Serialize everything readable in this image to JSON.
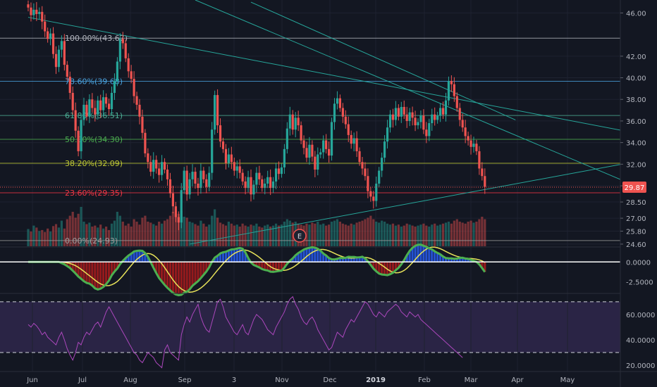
{
  "chart_data": [
    {
      "type": "candlestick",
      "panel": "price",
      "price_axis": {
        "ticks": [
          "46.00",
          "42.00",
          "40.00",
          "38.00",
          "36.00",
          "34.00",
          "32.00",
          "30.00",
          "28.50",
          "27.00",
          "25.80",
          "24.60"
        ],
        "ylim": [
          24.4,
          47.2
        ],
        "current_price": "29.87"
      },
      "time_axis": {
        "labels": [
          "Jun",
          "Jul",
          "Aug",
          "Sep",
          "3",
          "Nov",
          "Dec",
          "2019",
          "Feb",
          "Mar",
          "Apr",
          "May"
        ],
        "bold": [
          "2019"
        ]
      },
      "fibonacci_levels": [
        {
          "ratio": 1.0,
          "price": 43.67,
          "label": "100.00%(43.67)",
          "color": "#b2b5be"
        },
        {
          "ratio": 0.786,
          "price": 39.68,
          "label": "78.60%(39.68)",
          "color": "#4aa3df"
        },
        {
          "ratio": 0.618,
          "price": 36.51,
          "label": "61.80%(36.51)",
          "color": "#4caf95"
        },
        {
          "ratio": 0.5,
          "price": 34.3,
          "label": "50.00%(34.30)",
          "color": "#4caf50"
        },
        {
          "ratio": 0.382,
          "price": 32.09,
          "label": "38.20%(32.09)",
          "color": "#c0ca33"
        },
        {
          "ratio": 0.236,
          "price": 29.35,
          "label": "23.60%(29.35)",
          "color": "#f23645"
        },
        {
          "ratio": 0.0,
          "price": 24.93,
          "label": "0.00%(24.93)",
          "color": "#9e9e9e"
        }
      ],
      "earnings_marker": "E",
      "series": [
        {
          "name": "close",
          "values": [
            46.5,
            45.8,
            46.3,
            45.9,
            46.1,
            45.2,
            44.3,
            43.6,
            44.1,
            42.2,
            41.0,
            42.6,
            43.4,
            41.2,
            40.1,
            38.6,
            37.0,
            35.1,
            33.2,
            36.1,
            37.5,
            36.4,
            38.0,
            37.2,
            36.6,
            37.9,
            37.0,
            38.2,
            37.6,
            37.1,
            38.6,
            39.7,
            41.5,
            43.6,
            43.2,
            41.8,
            40.6,
            39.9,
            38.3,
            37.5,
            36.4,
            34.9,
            33.0,
            32.2,
            31.3,
            32.4,
            31.6,
            31.0,
            32.2,
            31.5,
            30.6,
            29.3,
            28.1,
            27.1,
            26.6,
            29.6,
            31.4,
            29.2,
            30.6,
            31.3,
            30.2,
            29.8,
            31.4,
            30.6,
            29.9,
            31.2,
            35.2,
            38.4,
            35.6,
            34.1,
            33.4,
            32.1,
            32.9,
            32.2,
            31.4,
            31.8,
            31.2,
            30.4,
            29.8,
            30.8,
            29.2,
            30.1,
            31.2,
            30.6,
            29.8,
            30.2,
            30.8,
            29.8,
            30.4,
            31.6,
            31.1,
            31.7,
            33.4,
            35.3,
            36.6,
            35.2,
            36.3,
            35.6,
            34.2,
            33.5,
            32.6,
            33.8,
            32.7,
            31.5,
            32.9,
            33.1,
            34.2,
            33.4,
            32.8,
            35.9,
            37.6,
            38.1,
            37.2,
            36.4,
            35.7,
            34.7,
            33.9,
            34.4,
            33.2,
            32.2,
            31.6,
            30.9,
            29.5,
            29.0,
            28.6,
            30.2,
            31.4,
            32.6,
            34.1,
            35.4,
            36.6,
            36.1,
            37.2,
            36.4,
            37.3,
            36.6,
            36.0,
            36.8,
            36.3,
            35.6,
            35.9,
            36.5,
            35.2,
            34.6,
            35.8,
            36.6,
            36.1,
            36.5,
            37.2,
            36.6,
            37.9,
            39.7,
            39.4,
            38.3,
            37.2,
            36.1,
            35.4,
            34.6,
            34.2,
            33.6,
            33.9,
            33.2,
            31.6,
            30.9,
            29.9
          ]
        },
        {
          "name": "volume",
          "values": [
            0.35,
            0.3,
            0.42,
            0.38,
            0.31,
            0.33,
            0.29,
            0.36,
            0.3,
            0.41,
            0.45,
            0.38,
            0.52,
            0.36,
            0.55,
            0.62,
            0.7,
            0.58,
            0.66,
            0.8,
            0.5,
            0.45,
            0.48,
            0.4,
            0.42,
            0.38,
            0.44,
            0.36,
            0.4,
            0.33,
            0.46,
            0.52,
            0.7,
            0.62,
            0.5,
            0.42,
            0.46,
            0.4,
            0.55,
            0.5,
            0.44,
            0.58,
            0.62,
            0.5,
            0.48,
            0.45,
            0.42,
            0.5,
            0.46,
            0.52,
            0.55,
            0.62,
            0.7,
            0.78,
            0.66,
            0.72,
            0.6,
            0.58,
            0.5,
            0.48,
            0.45,
            0.42,
            0.52,
            0.46,
            0.4,
            0.44,
            0.62,
            0.75,
            0.58,
            0.48,
            0.45,
            0.42,
            0.5,
            0.46,
            0.42,
            0.44,
            0.4,
            0.46,
            0.42,
            0.4,
            0.44,
            0.42,
            0.46,
            0.4,
            0.38,
            0.42,
            0.44,
            0.4,
            0.42,
            0.46,
            0.42,
            0.44,
            0.5,
            0.55,
            0.52,
            0.48,
            0.5,
            0.46,
            0.44,
            0.42,
            0.46,
            0.44,
            0.48,
            0.46,
            0.5,
            0.44,
            0.46,
            0.42,
            0.44,
            0.5,
            0.52,
            0.55,
            0.5,
            0.46,
            0.44,
            0.42,
            0.46,
            0.44,
            0.48,
            0.5,
            0.52,
            0.55,
            0.58,
            0.62,
            0.55,
            0.5,
            0.48,
            0.52,
            0.5,
            0.46,
            0.44,
            0.46,
            0.42,
            0.44,
            0.4,
            0.42,
            0.46,
            0.44,
            0.42,
            0.4,
            0.42,
            0.44,
            0.46,
            0.42,
            0.4,
            0.44,
            0.46,
            0.42,
            0.44,
            0.46,
            0.48,
            0.5,
            0.46,
            0.52,
            0.55,
            0.5,
            0.48,
            0.46,
            0.5,
            0.52,
            0.48,
            0.5,
            0.55,
            0.6,
            0.55
          ]
        }
      ],
      "trendlines": [
        {
          "from": {
            "bar": 0,
            "price": 45.6
          },
          "to": {
            "bar": 230,
            "price": 34.3
          },
          "color": "#26a69a"
        },
        {
          "from": {
            "bar": 60,
            "price": 47.2
          },
          "to": {
            "bar": 230,
            "price": 28.7
          },
          "color": "#26a69a"
        },
        {
          "from": {
            "bar": 80,
            "price": 47.0
          },
          "to": {
            "bar": 175,
            "price": 36.1
          },
          "color": "#26a69a"
        },
        {
          "from": {
            "bar": 58,
            "price": 24.6
          },
          "to": {
            "bar": 230,
            "price": 32.8
          },
          "color": "#26a69a"
        }
      ]
    },
    {
      "type": "line",
      "panel": "macd",
      "axis_ticks": [
        "0.0000",
        "-2.5000"
      ],
      "zero_value": 0.0,
      "ylim": [
        -3.8,
        1.8
      ]
    },
    {
      "type": "line",
      "panel": "rsi",
      "axis_ticks": [
        "60.0000",
        "40.0000",
        "20.0000"
      ],
      "ylim": [
        15,
        76
      ],
      "bands": [
        70,
        30
      ],
      "series": [
        {
          "name": "rsi",
          "values": [
            52,
            50,
            53,
            51,
            48,
            44,
            46,
            42,
            40,
            38,
            36,
            42,
            46,
            40,
            33,
            28,
            24,
            30,
            38,
            36,
            42,
            46,
            44,
            48,
            52,
            54,
            50,
            56,
            62,
            66,
            62,
            58,
            54,
            50,
            46,
            42,
            38,
            34,
            30,
            28,
            24,
            22,
            26,
            30,
            28,
            26,
            22,
            20,
            18,
            32,
            36,
            30,
            28,
            26,
            24,
            44,
            52,
            58,
            54,
            60,
            64,
            68,
            58,
            52,
            48,
            46,
            54,
            62,
            70,
            72,
            66,
            58,
            54,
            50,
            46,
            44,
            48,
            52,
            46,
            44,
            50,
            56,
            60,
            58,
            56,
            52,
            48,
            46,
            44,
            50,
            54,
            58,
            62,
            68,
            72,
            74,
            68,
            64,
            58,
            54,
            52,
            56,
            58,
            54,
            48,
            44,
            40,
            36,
            32,
            34,
            40,
            46,
            44,
            42,
            48,
            52,
            56,
            54,
            58,
            62,
            66,
            70,
            68,
            64,
            60,
            58,
            62,
            60,
            58,
            62,
            64,
            66,
            68,
            66,
            62,
            60,
            58,
            62,
            60,
            58,
            60,
            56,
            54,
            52,
            50,
            48,
            46,
            44,
            42,
            40,
            38,
            36,
            34,
            32,
            30,
            28,
            26
          ]
        }
      ]
    }
  ]
}
